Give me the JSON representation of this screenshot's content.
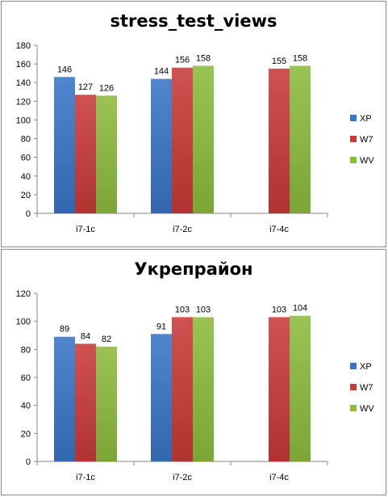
{
  "colors": {
    "XP": "#3a74c8",
    "W7": "#c83a38",
    "WV": "#8dbb3c"
  },
  "chart_data": [
    {
      "type": "bar",
      "title": "stress_test_views",
      "categories": [
        "i7-1c",
        "i7-2c",
        "i7-4c"
      ],
      "series": [
        {
          "name": "XP",
          "values": [
            146,
            144,
            null
          ]
        },
        {
          "name": "W7",
          "values": [
            127,
            156,
            155
          ]
        },
        {
          "name": "WV",
          "values": [
            126,
            158,
            158
          ]
        }
      ],
      "ylim": [
        0,
        180
      ],
      "yticks": [
        0,
        20,
        40,
        60,
        80,
        100,
        120,
        140,
        160,
        180
      ],
      "legend": "right",
      "grid": false
    },
    {
      "type": "bar",
      "title": "Укрепрайон",
      "categories": [
        "i7-1c",
        "i7-2c",
        "i7-4c"
      ],
      "series": [
        {
          "name": "XP",
          "values": [
            89,
            91,
            null
          ]
        },
        {
          "name": "W7",
          "values": [
            84,
            103,
            103
          ]
        },
        {
          "name": "WV",
          "values": [
            82,
            103,
            104
          ]
        }
      ],
      "ylim": [
        0,
        120
      ],
      "yticks": [
        0,
        20,
        40,
        60,
        80,
        100,
        120
      ],
      "legend": "right",
      "grid": false
    }
  ]
}
